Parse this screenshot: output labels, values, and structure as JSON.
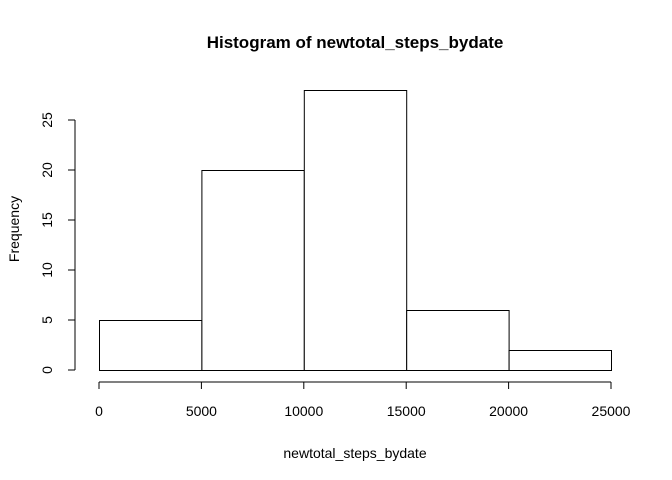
{
  "chart_data": {
    "type": "bar",
    "title": "Histogram of newtotal_steps_bydate",
    "xlabel": "newtotal_steps_bydate",
    "ylabel": "Frequency",
    "bins": [
      {
        "from": 0,
        "to": 5000,
        "count": 5
      },
      {
        "from": 5000,
        "to": 10000,
        "count": 20
      },
      {
        "from": 10000,
        "to": 15000,
        "count": 28
      },
      {
        "from": 15000,
        "to": 20000,
        "count": 6
      },
      {
        "from": 20000,
        "to": 25000,
        "count": 2
      }
    ],
    "xlim": [
      0,
      25000
    ],
    "ylim": [
      0,
      28
    ],
    "xticks": [
      0,
      5000,
      10000,
      15000,
      20000,
      25000
    ],
    "yticks": [
      0,
      5,
      10,
      15,
      20,
      25
    ],
    "grid": false,
    "legend": "none",
    "colors": {
      "bar_fill": "#ffffff",
      "bar_stroke": "#000000"
    }
  }
}
